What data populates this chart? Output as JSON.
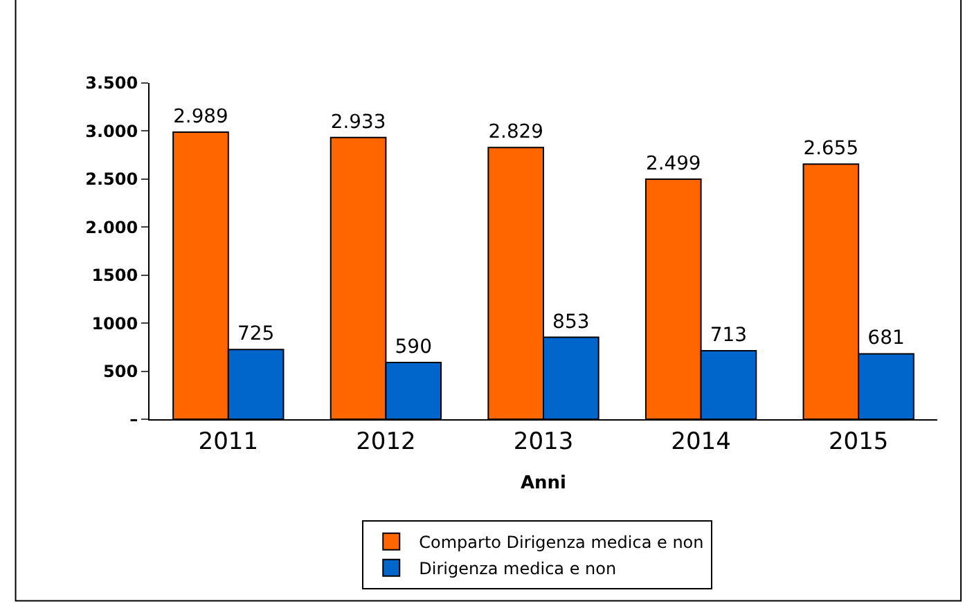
{
  "chart_data": {
    "type": "bar",
    "xlabel": "Anni",
    "categories": [
      "2011",
      "2012",
      "2013",
      "2014",
      "2015"
    ],
    "series": [
      {
        "name": "Comparto Dirigenza medica e non",
        "color": "#ff6600",
        "values": [
          2989,
          2933,
          2829,
          2499,
          2655
        ],
        "value_labels": [
          "2.989",
          "2.933",
          "2.829",
          "2.499",
          "2.655"
        ]
      },
      {
        "name": "Dirigenza medica e non",
        "color": "#0066cc",
        "values": [
          725,
          590,
          853,
          713,
          681
        ],
        "value_labels": [
          "725",
          "590",
          "853",
          "713",
          "681"
        ]
      }
    ],
    "ylim": [
      0,
      3500
    ],
    "yticks": [
      {
        "value": 0,
        "label": "–"
      },
      500,
      1000,
      1500,
      {
        "value": 2000,
        "label": "2.000"
      },
      {
        "value": 2500,
        "label": "2.500"
      },
      {
        "value": 3000,
        "label": "3.000"
      },
      {
        "value": 3500,
        "label": "3.500"
      }
    ],
    "legend": "bottom"
  }
}
